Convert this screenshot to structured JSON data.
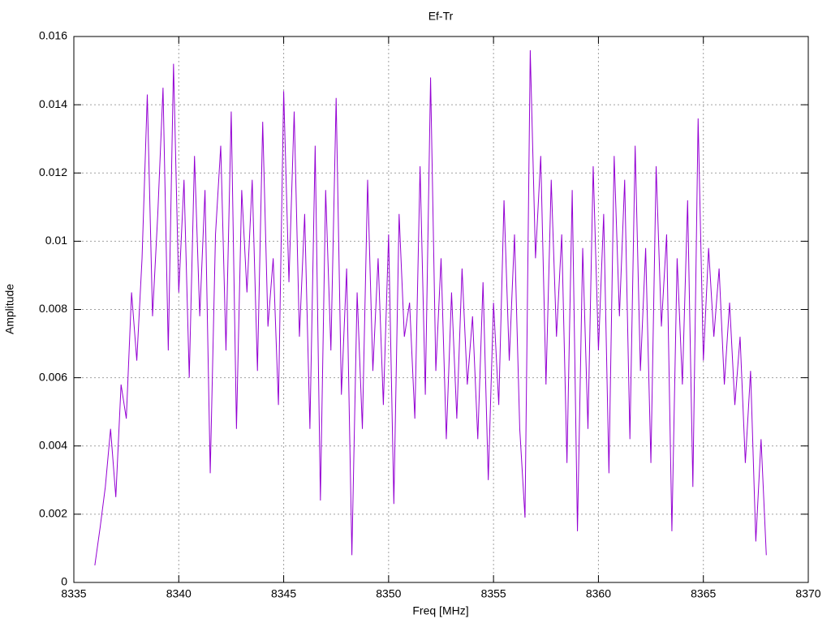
{
  "chart_data": {
    "type": "line",
    "title": "Ef-Tr",
    "xlabel": "Freq [MHz]",
    "ylabel": "Amplitude",
    "x": [
      8336,
      8336.25,
      8336.5,
      8336.75,
      8337,
      8337.25,
      8337.5,
      8337.75,
      8338,
      8338.25,
      8338.5,
      8338.75,
      8339,
      8339.25,
      8339.5,
      8339.75,
      8340,
      8340.25,
      8340.5,
      8340.75,
      8341,
      8341.25,
      8341.5,
      8341.75,
      8342,
      8342.25,
      8342.5,
      8342.75,
      8343,
      8343.25,
      8343.5,
      8343.75,
      8344,
      8344.25,
      8344.5,
      8344.75,
      8345,
      8345.25,
      8345.5,
      8345.75,
      8346,
      8346.25,
      8346.5,
      8346.75,
      8347,
      8347.25,
      8347.5,
      8347.75,
      8348,
      8348.25,
      8348.5,
      8348.75,
      8349,
      8349.25,
      8349.5,
      8349.75,
      8350,
      8350.25,
      8350.5,
      8350.75,
      8351,
      8351.25,
      8351.5,
      8351.75,
      8352,
      8352.25,
      8352.5,
      8352.75,
      8353,
      8353.25,
      8353.5,
      8353.75,
      8354,
      8354.25,
      8354.5,
      8354.75,
      8355,
      8355.25,
      8355.5,
      8355.75,
      8356,
      8356.25,
      8356.5,
      8356.75,
      8357,
      8357.25,
      8357.5,
      8357.75,
      8358,
      8358.25,
      8358.5,
      8358.75,
      8359,
      8359.25,
      8359.5,
      8359.75,
      8360,
      8360.25,
      8360.5,
      8360.75,
      8361,
      8361.25,
      8361.5,
      8361.75,
      8362,
      8362.25,
      8362.5,
      8362.75,
      8363,
      8363.25,
      8363.5,
      8363.75,
      8364,
      8364.25,
      8364.5,
      8364.75,
      8365,
      8365.25,
      8365.5,
      8365.75,
      8366,
      8366.25,
      8366.5,
      8366.75,
      8367,
      8367.25,
      8367.5,
      8367.75,
      8368
    ],
    "series": [
      {
        "color": "#9400d3",
        "values": [
          0.0005,
          0.0016,
          0.0028,
          0.0045,
          0.0025,
          0.0058,
          0.0048,
          0.0085,
          0.0065,
          0.0095,
          0.0143,
          0.0078,
          0.0108,
          0.0145,
          0.0068,
          0.0152,
          0.0085,
          0.0118,
          0.006,
          0.0125,
          0.0078,
          0.0115,
          0.0032,
          0.0102,
          0.0128,
          0.0068,
          0.0138,
          0.0045,
          0.0115,
          0.0085,
          0.0118,
          0.0062,
          0.0135,
          0.0075,
          0.0095,
          0.0052,
          0.0144,
          0.0088,
          0.0138,
          0.0072,
          0.0108,
          0.0045,
          0.0128,
          0.0024,
          0.0115,
          0.0068,
          0.0142,
          0.0055,
          0.0092,
          0.0008,
          0.0085,
          0.0045,
          0.0118,
          0.0062,
          0.0095,
          0.0052,
          0.0102,
          0.0023,
          0.0108,
          0.0072,
          0.0082,
          0.0048,
          0.0122,
          0.0055,
          0.0148,
          0.0062,
          0.0095,
          0.0042,
          0.0085,
          0.0048,
          0.0092,
          0.0058,
          0.0078,
          0.0042,
          0.0088,
          0.003,
          0.0082,
          0.0052,
          0.0112,
          0.0065,
          0.0102,
          0.0045,
          0.0019,
          0.0156,
          0.0095,
          0.0125,
          0.0058,
          0.0118,
          0.0072,
          0.0102,
          0.0035,
          0.0115,
          0.0015,
          0.0098,
          0.0045,
          0.0122,
          0.0068,
          0.0108,
          0.0032,
          0.0125,
          0.0078,
          0.0118,
          0.0042,
          0.0128,
          0.0062,
          0.0098,
          0.0035,
          0.0122,
          0.0075,
          0.0102,
          0.0015,
          0.0095,
          0.0058,
          0.0112,
          0.0028,
          0.0136,
          0.0065,
          0.0098,
          0.0072,
          0.0092,
          0.0058,
          0.0082,
          0.0052,
          0.0072,
          0.0035,
          0.0062,
          0.0012,
          0.0042,
          0.0008
        ]
      }
    ],
    "xlim": [
      8335,
      8370
    ],
    "xticks": [
      8335,
      8340,
      8345,
      8350,
      8355,
      8360,
      8365,
      8370
    ],
    "ylim": [
      0,
      0.016
    ],
    "yticks": [
      0,
      0.002,
      0.004,
      0.006,
      0.008,
      0.01,
      0.012,
      0.014,
      0.016
    ],
    "grid": true
  }
}
